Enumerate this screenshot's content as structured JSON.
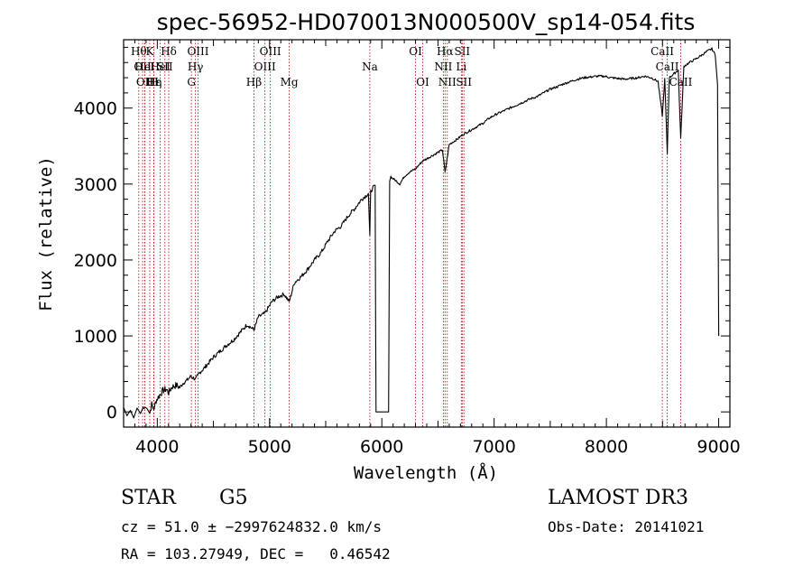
{
  "chart_data": {
    "type": "line",
    "title": "spec-56952-HD070013N000500V_sp14-054.fits",
    "xlabel": "Wavelength (Å)",
    "ylabel": "Flux (relative)",
    "xlim": [
      3700,
      9100
    ],
    "ylim": [
      -200,
      4900
    ],
    "xticks": [
      4000,
      5000,
      6000,
      7000,
      8000,
      9000
    ],
    "yticks": [
      0,
      1000,
      2000,
      3000,
      4000
    ],
    "series": [
      {
        "name": "flux",
        "x": [
          3700,
          3730,
          3760,
          3790,
          3820,
          3850,
          3880,
          3910,
          3933,
          3950,
          3969,
          3990,
          4020,
          4050,
          4080,
          4102,
          4130,
          4170,
          4200,
          4230,
          4260,
          4300,
          4340,
          4380,
          4420,
          4460,
          4500,
          4560,
          4620,
          4680,
          4740,
          4800,
          4861,
          4900,
          4960,
          5020,
          5080,
          5130,
          5175,
          5220,
          5280,
          5340,
          5400,
          5460,
          5520,
          5580,
          5640,
          5700,
          5760,
          5820,
          5860,
          5880,
          5893,
          5900,
          5920,
          5940,
          5945,
          5948,
          5960,
          6000,
          6060,
          6065,
          6070,
          6080,
          6090,
          6120,
          6160,
          6200,
          6240,
          6300,
          6360,
          6420,
          6480,
          6540,
          6563,
          6600,
          6640,
          6680,
          6720,
          6780,
          6840,
          6900,
          6960,
          7020,
          7080,
          7140,
          7200,
          7260,
          7320,
          7380,
          7440,
          7500,
          7560,
          7620,
          7680,
          7740,
          7800,
          7860,
          7920,
          7980,
          8040,
          8100,
          8160,
          8220,
          8280,
          8340,
          8400,
          8460,
          8498,
          8520,
          8542,
          8560,
          8600,
          8640,
          8662,
          8690,
          8740,
          8800,
          8850,
          8900,
          8940,
          8970,
          8990,
          9000
        ],
        "y": [
          60,
          -50,
          20,
          -80,
          50,
          -20,
          80,
          40,
          -20,
          100,
          30,
          150,
          220,
          280,
          300,
          250,
          330,
          350,
          320,
          380,
          410,
          470,
          430,
          520,
          580,
          650,
          720,
          800,
          880,
          950,
          1050,
          1150,
          1080,
          1250,
          1300,
          1450,
          1520,
          1550,
          1450,
          1700,
          1780,
          1880,
          2000,
          2100,
          2250,
          2380,
          2450,
          2580,
          2680,
          2800,
          2850,
          2880,
          2300,
          2900,
          2950,
          2970,
          1000,
          0,
          0,
          0,
          0,
          1500,
          3050,
          3100,
          3080,
          3050,
          3000,
          3100,
          3150,
          3200,
          3300,
          3350,
          3400,
          3450,
          3150,
          3520,
          3560,
          3600,
          3650,
          3700,
          3750,
          3800,
          3870,
          3920,
          3960,
          4000,
          4040,
          4080,
          4120,
          4150,
          4200,
          4250,
          4280,
          4320,
          4350,
          4380,
          4400,
          4410,
          4420,
          4420,
          4400,
          4390,
          4380,
          4390,
          4400,
          4420,
          4400,
          4350,
          3900,
          4380,
          3400,
          4400,
          4450,
          4500,
          3600,
          4550,
          4600,
          4650,
          4700,
          4750,
          4780,
          4700,
          4300,
          1000
        ]
      }
    ],
    "line_markers": [
      {
        "wl": 3835,
        "row": 0,
        "label": "Hθ"
      },
      {
        "wl": 3869,
        "row": 1,
        "label": "OII"
      },
      {
        "wl": 3889,
        "row": 2,
        "label": "OII"
      },
      {
        "wl": 3889,
        "row": 1,
        "label": "HeI"
      },
      {
        "wl": 3933,
        "row": 0,
        "label": "K"
      },
      {
        "wl": 3970,
        "row": 2,
        "label": "Hε"
      },
      {
        "wl": 4026,
        "row": 1,
        "label": "HeI"
      },
      {
        "wl": 3969,
        "row": 2,
        "label": "Hη"
      },
      {
        "wl": 3969,
        "row": 2,
        "label": "H"
      },
      {
        "wl": 4068,
        "row": 1,
        "label": "SII"
      },
      {
        "wl": 4102,
        "row": 0,
        "label": "Hδ"
      },
      {
        "wl": 4304,
        "row": 2,
        "label": "G"
      },
      {
        "wl": 4340,
        "row": 1,
        "label": "Hγ"
      },
      {
        "wl": 4363,
        "row": 0,
        "label": "OIII"
      },
      {
        "wl": 4861,
        "row": 2,
        "label": "Hβ"
      },
      {
        "wl": 4959,
        "row": 1,
        "label": "OIII"
      },
      {
        "wl": 5007,
        "row": 0,
        "label": "OIII"
      },
      {
        "wl": 5175,
        "row": 2,
        "label": "Mg"
      },
      {
        "wl": 5893,
        "row": 1,
        "label": "Na"
      },
      {
        "wl": 6300,
        "row": 0,
        "label": "OI"
      },
      {
        "wl": 6364,
        "row": 2,
        "label": "OI"
      },
      {
        "wl": 6548,
        "row": 1,
        "label": "NII"
      },
      {
        "wl": 6563,
        "row": 0,
        "label": "Hα"
      },
      {
        "wl": 6583,
        "row": 2,
        "label": "NII"
      },
      {
        "wl": 6708,
        "row": 1,
        "label": "Li"
      },
      {
        "wl": 6716,
        "row": 0,
        "label": "SII"
      },
      {
        "wl": 6731,
        "row": 2,
        "label": "SII"
      },
      {
        "wl": 8498,
        "row": 0,
        "label": "CaII"
      },
      {
        "wl": 8542,
        "row": 1,
        "label": "CaII"
      },
      {
        "wl": 8662,
        "row": 2,
        "label": "CaII"
      }
    ]
  },
  "info": {
    "object_class": "STAR",
    "subclass": "G5",
    "survey": "LAMOST DR3",
    "redshift_line": "cz = 51.0 ± −2997624832.0 km/s",
    "obs_date": "Obs-Date: 20141021",
    "coords": "RA = 103.27949, DEC =   0.46542"
  }
}
